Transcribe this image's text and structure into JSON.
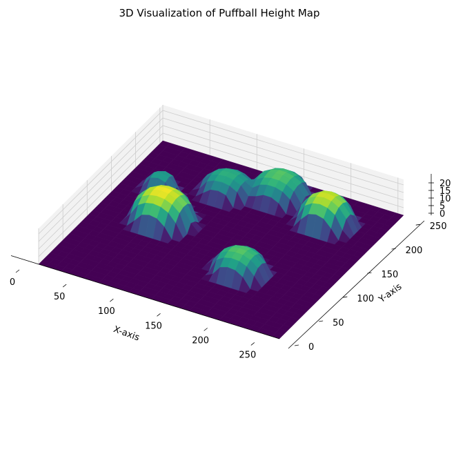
{
  "chart_data": {
    "type": "surface3d",
    "title": "3D Visualization of Puffball Height Map",
    "xlabel": "X-axis",
    "ylabel": "Y-axis",
    "zlabel": "",
    "xlim": [
      0,
      256
    ],
    "ylim": [
      0,
      256
    ],
    "zlim": [
      0,
      20
    ],
    "xticks": [
      0,
      50,
      100,
      150,
      200,
      250
    ],
    "yticks": [
      0,
      50,
      100,
      150,
      200,
      250
    ],
    "zticks": [
      0,
      5,
      10,
      15,
      20
    ],
    "colormap": "viridis",
    "grid": true,
    "grid_points": 32,
    "puffballs": [
      {
        "x": 65,
        "y": 130,
        "radius": 32,
        "height": 20
      },
      {
        "x": 40,
        "y": 175,
        "radius": 18,
        "height": 12
      },
      {
        "x": 95,
        "y": 205,
        "radius": 27,
        "height": 13
      },
      {
        "x": 140,
        "y": 225,
        "radius": 30,
        "height": 15
      },
      {
        "x": 200,
        "y": 205,
        "radius": 28,
        "height": 19
      },
      {
        "x": 170,
        "y": 85,
        "radius": 28,
        "height": 15
      }
    ]
  },
  "colors": {
    "viridis": [
      "#440154",
      "#482878",
      "#3e4989",
      "#31688e",
      "#26828e",
      "#1f9e89",
      "#35b779",
      "#6ece58",
      "#b5de2b",
      "#fde725"
    ],
    "pane": "#f2f2f2",
    "grid": "#cccccc"
  }
}
